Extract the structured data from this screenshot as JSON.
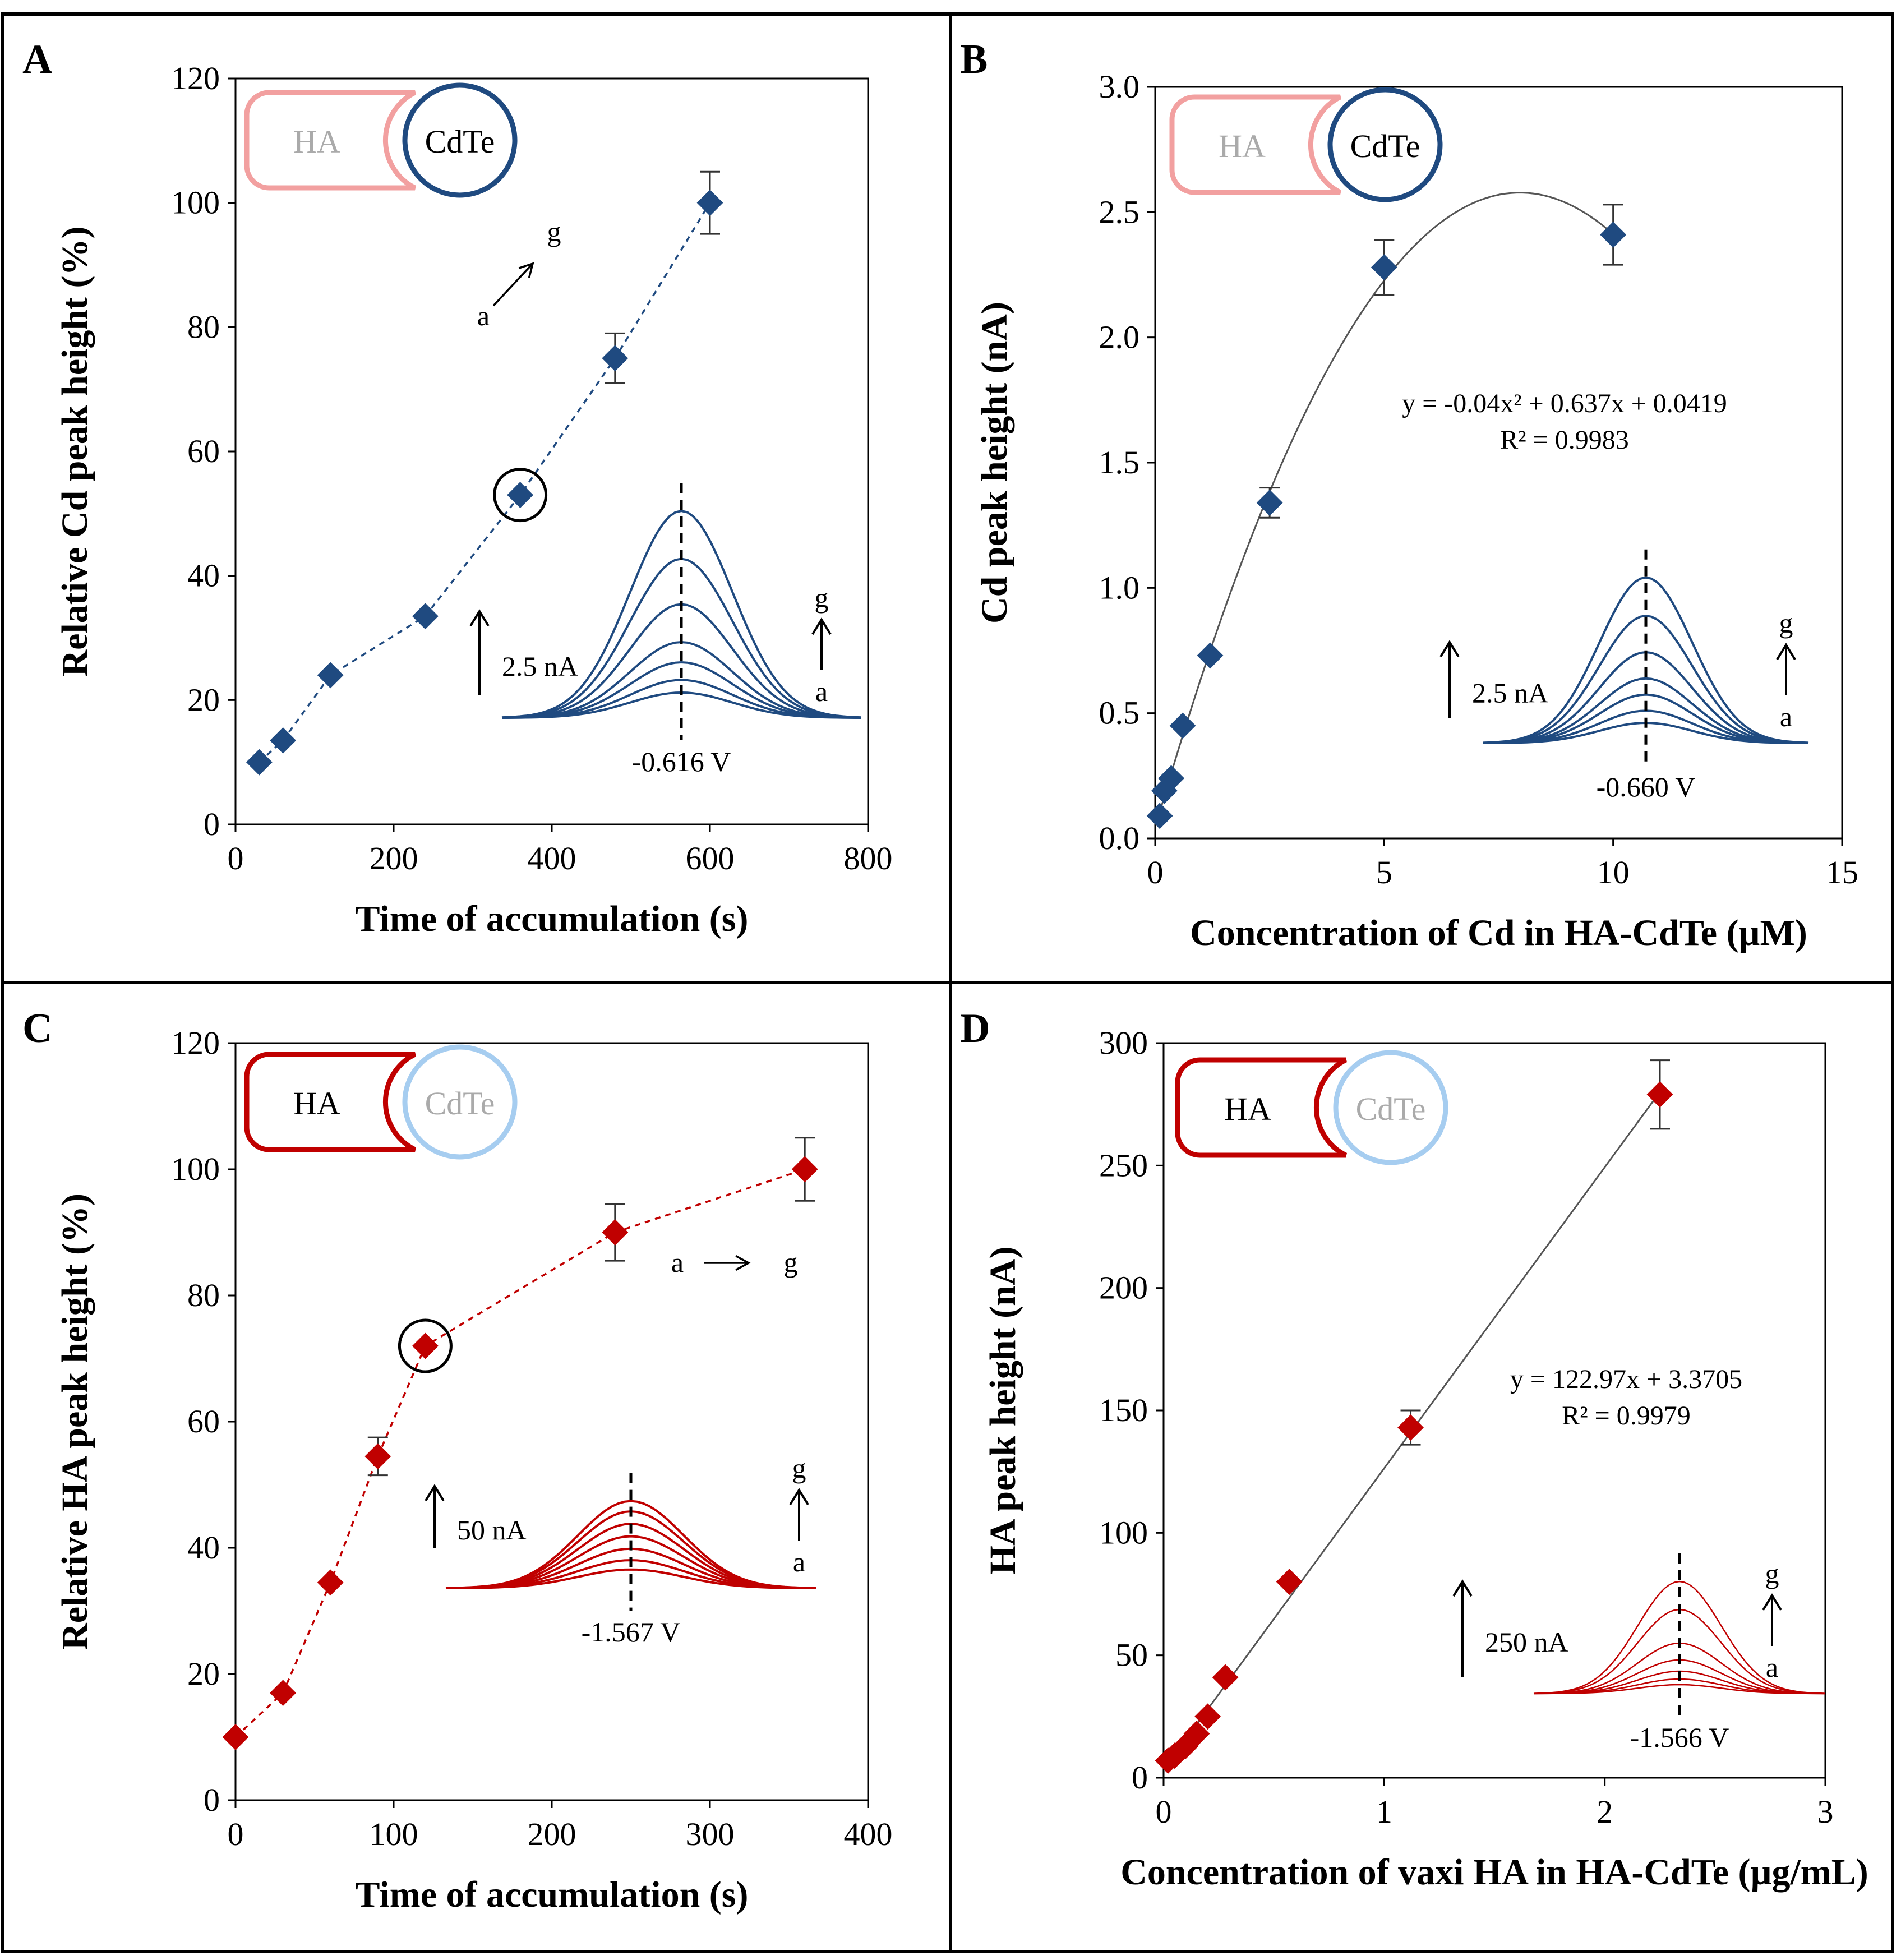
{
  "colors": {
    "blue": "#1f4a80",
    "red": "#c00000",
    "light_red": "#f2a0a0",
    "light_blue": "#a6cdf0",
    "frame": "#000000",
    "fit": "#555555"
  },
  "chart_data": [
    {
      "panel": "A",
      "type": "scatter",
      "line": "dashed",
      "series_color": "blue",
      "xlabel": "Time of accumulation (s)",
      "ylabel": "Relative Cd peak height (%)",
      "xlim": [
        0,
        800
      ],
      "ylim": [
        0,
        120
      ],
      "xticks": [
        "0",
        "200",
        "400",
        "600",
        "800"
      ],
      "yticks": [
        "0",
        "20",
        "40",
        "60",
        "80",
        "100",
        "120"
      ],
      "x": [
        30,
        60,
        120,
        240,
        360,
        480,
        600
      ],
      "y": [
        10,
        13.5,
        24,
        33.5,
        53,
        75,
        100
      ],
      "err": [
        0,
        0,
        0,
        0,
        0,
        4,
        5
      ],
      "highlight_index": 4,
      "badge": {
        "left": "HA",
        "right": "CdTe",
        "emph": "right"
      },
      "arrow_note": {
        "from": "a",
        "to": "g"
      },
      "inset": {
        "scale": "2.5 nA",
        "potential": "-0.616 V",
        "from": "a",
        "to": "g",
        "peak_heights": [
          0.1,
          0.15,
          0.22,
          0.3,
          0.45,
          0.63,
          0.82
        ]
      }
    },
    {
      "panel": "B",
      "type": "scatter",
      "line": "polyfit",
      "series_color": "blue",
      "xlabel": "Concentration of Cd in HA-CdTe (µM)",
      "ylabel": "Cd peak height (nA)",
      "xlim": [
        0,
        15
      ],
      "ylim": [
        0,
        3.0
      ],
      "xticks": [
        "0",
        "5",
        "10",
        "15"
      ],
      "yticks": [
        "0.0",
        "0.5",
        "1.0",
        "1.5",
        "2.0",
        "2.5",
        "3.0"
      ],
      "x": [
        0.1,
        0.2,
        0.35,
        0.6,
        1.2,
        2.5,
        5,
        10
      ],
      "y": [
        0.09,
        0.19,
        0.24,
        0.45,
        0.73,
        1.34,
        2.28,
        2.41
      ],
      "err": [
        0,
        0,
        0,
        0,
        0,
        0.06,
        0.11,
        0.12
      ],
      "fit": {
        "a": -0.04,
        "b": 0.637,
        "c": 0.0419,
        "x_range": [
          0.1,
          10
        ]
      },
      "equation": "y = -0.04x² + 0.637x + 0.0419",
      "r2": "R² = 0.9983",
      "badge": {
        "left": "HA",
        "right": "CdTe",
        "emph": "right"
      },
      "inset": {
        "scale": "2.5 nA",
        "potential": "-0.660 V",
        "from": "a",
        "to": "g",
        "peak_heights": [
          0.1,
          0.16,
          0.24,
          0.32,
          0.45,
          0.63,
          0.82
        ]
      }
    },
    {
      "panel": "C",
      "type": "scatter",
      "line": "dashed",
      "series_color": "red",
      "xlabel": "Time of accumulation (s)",
      "ylabel": "Relative HA peak height (%)",
      "xlim": [
        0,
        400
      ],
      "ylim": [
        0,
        120
      ],
      "xticks": [
        "0",
        "100",
        "200",
        "300",
        "400"
      ],
      "yticks": [
        "0",
        "20",
        "40",
        "60",
        "80",
        "100",
        "120"
      ],
      "x": [
        0,
        30,
        60,
        90,
        120,
        240,
        360
      ],
      "y": [
        10,
        17,
        34.5,
        54.5,
        72,
        90,
        100
      ],
      "err": [
        0,
        0,
        0,
        3,
        0,
        4.5,
        5
      ],
      "highlight_index": 4,
      "badge": {
        "left": "HA",
        "right": "CdTe",
        "emph": "left"
      },
      "arrow_note": {
        "from": "a",
        "to": "g"
      },
      "inset": {
        "scale": "50 nA",
        "potential": "-1.567 V",
        "from": "a",
        "to": "g",
        "peak_heights": [
          0.18,
          0.27,
          0.38,
          0.5,
          0.62,
          0.74,
          0.84
        ]
      }
    },
    {
      "panel": "D",
      "type": "scatter",
      "line": "linear",
      "series_color": "red",
      "xlabel": "Concentration of vaxi HA in HA-CdTe (µg/mL)",
      "ylabel": "HA peak height (nA)",
      "xlim": [
        0,
        3
      ],
      "ylim": [
        0,
        300
      ],
      "xticks": [
        "0",
        "1",
        "2",
        "3"
      ],
      "yticks": [
        "0",
        "50",
        "100",
        "150",
        "200",
        "250",
        "300"
      ],
      "x": [
        0.02,
        0.05,
        0.1,
        0.15,
        0.2,
        0.28,
        0.57,
        1.12,
        2.25
      ],
      "y": [
        7,
        9,
        13,
        18,
        25,
        41,
        80,
        143,
        279
      ],
      "err": [
        0,
        0,
        0,
        0,
        0,
        0,
        0,
        7,
        14
      ],
      "fit": {
        "m": 122.97,
        "b": 3.3705,
        "x_range": [
          0.02,
          2.25
        ]
      },
      "equation": "y = 122.97x + 3.3705",
      "r2": "R² = 0.9979",
      "badge": {
        "left": "HA",
        "right": "CdTe",
        "emph": "left"
      },
      "inset": {
        "scale": "250 nA",
        "potential": "-1.566 V",
        "from": "a",
        "to": "g",
        "peak_heights": [
          0.08,
          0.13,
          0.2,
          0.3,
          0.45,
          0.75,
          1.0
        ]
      }
    }
  ]
}
